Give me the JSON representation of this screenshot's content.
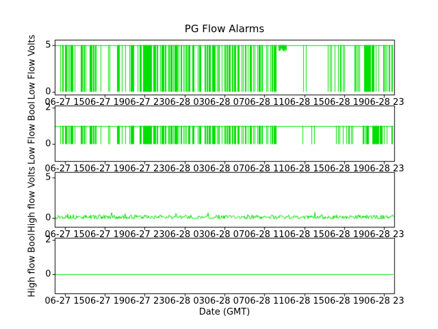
{
  "figure": {
    "title": "PG Flow Alarms",
    "xlabel": "Date (GMT)",
    "line_color": "#00e000",
    "axis_color": "#000000",
    "background": "#ffffff"
  },
  "chart_data": [
    {
      "type": "line",
      "ylabel": "Low Flow Volts",
      "yticks": [
        5,
        0
      ],
      "ylim": [
        -0.3,
        5.6
      ],
      "xlim": [
        0,
        34
      ],
      "xticks": [
        1,
        5,
        9,
        13,
        17,
        21,
        25,
        29,
        33
      ],
      "xticklabels": [
        "06-27 15",
        "06-27 19",
        "06-27 23",
        "06-28 03",
        "06-28 07",
        "06-28 11",
        "06-28 15",
        "06-28 19",
        "06-28 23"
      ],
      "series": {
        "kind": "pulse_train",
        "high": 5,
        "low": 0,
        "seed": 7,
        "segments": [
          [
            0,
            0.5,
            0
          ],
          [
            0.5,
            7,
            0.38
          ],
          [
            7,
            18.5,
            0.62
          ],
          [
            18.5,
            22.4,
            0.42
          ],
          [
            22.4,
            23.2,
            -1
          ],
          [
            23.2,
            24.6,
            0
          ],
          [
            24.6,
            27,
            0.08
          ],
          [
            27,
            31,
            0.25
          ],
          [
            31,
            34,
            0.55
          ]
        ]
      }
    },
    {
      "type": "line",
      "ylabel": "Low Flow Bool",
      "yticks": [
        2,
        0
      ],
      "ylim": [
        -0.9,
        2.1
      ],
      "xlim": [
        0,
        34
      ],
      "xticks": [
        1,
        5,
        9,
        13,
        17,
        21,
        25,
        29,
        33
      ],
      "xticklabels": [
        "06-27 15",
        "06-27 19",
        "06-27 23",
        "06-28 03",
        "06-28 07",
        "06-28 11",
        "06-28 15",
        "06-28 19",
        "06-28 23"
      ],
      "series": {
        "kind": "pulse_train",
        "high": 1,
        "low": 0,
        "seed": 7,
        "segments": [
          [
            0,
            0.5,
            0
          ],
          [
            0.5,
            7,
            0.38
          ],
          [
            7,
            18.5,
            0.6
          ],
          [
            18.5,
            22.4,
            0.4
          ],
          [
            22.4,
            24.6,
            0.02
          ],
          [
            24.6,
            27,
            0.08
          ],
          [
            27,
            31,
            0.25
          ],
          [
            31,
            34,
            0.55
          ]
        ]
      }
    },
    {
      "type": "line",
      "ylabel": "High flow Volts",
      "yticks": [
        5,
        0
      ],
      "ylim": [
        -1.1,
        5.7
      ],
      "xlim": [
        0,
        34
      ],
      "xticks": [
        1,
        5,
        9,
        13,
        17,
        21,
        25,
        29,
        33
      ],
      "xticklabels": [
        "06-27 15",
        "06-27 19",
        "06-27 23",
        "06-28 03",
        "06-28 07",
        "06-28 11",
        "06-28 15",
        "06-28 19",
        "06-28 23"
      ],
      "series": {
        "kind": "noise",
        "seed": 13,
        "mean": 0.1,
        "amp": 0.55,
        "spike_p": 0.04,
        "spike_amp": 0.5,
        "clamp_min": -0.1
      }
    },
    {
      "type": "line",
      "ylabel": "High flow Bool",
      "yticks": [
        2,
        0
      ],
      "ylim": [
        -1.1,
        2.1
      ],
      "xlim": [
        0,
        34
      ],
      "xticks": [
        1,
        5,
        9,
        13,
        17,
        21,
        25,
        29,
        33
      ],
      "xticklabels": [
        "06-27 15",
        "06-27 19",
        "06-27 23",
        "06-28 03",
        "06-28 07",
        "06-28 11",
        "06-28 15",
        "06-28 19",
        "06-28 23"
      ],
      "series": {
        "kind": "flat",
        "value": 0
      }
    }
  ]
}
